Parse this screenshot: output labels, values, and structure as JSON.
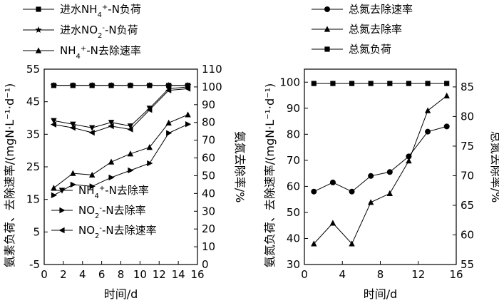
{
  "chart_data": [
    {
      "type": "line",
      "x": [
        1,
        3,
        5,
        7,
        9,
        11,
        13,
        15
      ],
      "xlabel": "时间/d",
      "xlim": [
        0,
        16
      ],
      "xticks": [
        0,
        2,
        4,
        6,
        8,
        10,
        12,
        14,
        16
      ],
      "ylabel": "氨素负荷、去除速率/(mgN·L⁻¹·d⁻¹)",
      "ylim": [
        -5,
        55
      ],
      "yticks": [
        -5,
        5,
        15,
        25,
        35,
        45,
        55
      ],
      "y2label": "氨氮去除率/%",
      "y2lim": [
        0,
        110
      ],
      "y2ticks": [
        0,
        10,
        20,
        30,
        40,
        50,
        60,
        70,
        80,
        90,
        100,
        110
      ],
      "grid": false,
      "legend_top": [
        {
          "parts": [
            {
              "t": "进水NH"
            },
            {
              "t": "4",
              "s": "sub"
            },
            {
              "t": "+",
              "s": "sup"
            },
            {
              "t": "-N负荷"
            }
          ],
          "marker": "square"
        },
        {
          "parts": [
            {
              "t": "进水NO"
            },
            {
              "t": "2",
              "s": "sub"
            },
            {
              "t": "-",
              "s": "sup"
            },
            {
              "t": "-N负荷"
            }
          ],
          "marker": "star"
        },
        {
          "parts": [
            {
              "t": "NH"
            },
            {
              "t": "4",
              "s": "sub"
            },
            {
              "t": "+",
              "s": "sup"
            },
            {
              "t": "-N去除速率"
            }
          ],
          "marker": "triangle-up"
        }
      ],
      "legend_inside": [
        {
          "parts": [
            {
              "t": "NH"
            },
            {
              "t": "4",
              "s": "sub"
            },
            {
              "t": "+",
              "s": "sup"
            },
            {
              "t": "-N去除率"
            }
          ],
          "marker": "triangle-down"
        },
        {
          "parts": [
            {
              "t": "NO"
            },
            {
              "t": "2",
              "s": "sub"
            },
            {
              "t": "-",
              "s": "sup"
            },
            {
              "t": "-N去除率"
            }
          ],
          "marker": "triangle-right"
        },
        {
          "parts": [
            {
              "t": "NO"
            },
            {
              "t": "2",
              "s": "sub"
            },
            {
              "t": "-",
              "s": "sup"
            },
            {
              "t": "-N去除速率"
            }
          ],
          "marker": "triangle-left"
        }
      ],
      "series": [
        {
          "marker": "square",
          "axis": "left",
          "values": [
            50,
            50,
            50,
            50,
            50,
            50,
            50,
            50
          ]
        },
        {
          "marker": "star",
          "axis": "left",
          "values": [
            50,
            50,
            50,
            50,
            50,
            50,
            50,
            50
          ]
        },
        {
          "marker": "triangle-down",
          "axis": "right",
          "values": [
            81,
            79,
            77,
            80,
            78,
            88,
            99,
            100
          ]
        },
        {
          "marker": "triangle-left",
          "axis": "left",
          "values": [
            38,
            37,
            35.5,
            37.5,
            36.5,
            42.5,
            48.5,
            49
          ]
        },
        {
          "marker": "triangle-right",
          "axis": "right",
          "values": [
            39,
            45,
            44,
            49,
            53,
            57,
            74,
            79
          ]
        },
        {
          "marker": "triangle-up",
          "axis": "left",
          "values": [
            18.5,
            23,
            22.5,
            26.5,
            29,
            31,
            38.5,
            41
          ]
        }
      ]
    },
    {
      "type": "line",
      "x": [
        1,
        3,
        5,
        7,
        9,
        11,
        13,
        15
      ],
      "xlabel": "时间/d",
      "xlim": [
        0,
        16
      ],
      "xticks": [
        0,
        4,
        8,
        12,
        16
      ],
      "ylabel": "氨氮负荷、去除速率/(mgN·L⁻¹·d⁻¹)",
      "ylim": [
        30,
        105
      ],
      "yticks": [
        30,
        40,
        50,
        60,
        70,
        80,
        90,
        100
      ],
      "y2label": "总氮去除率/%",
      "y2lim": [
        55,
        88
      ],
      "y2ticks": [
        55,
        60,
        65,
        70,
        75,
        80,
        85
      ],
      "grid": false,
      "legend_top": [
        {
          "parts": [
            {
              "t": "总氮去除速率"
            }
          ],
          "marker": "circle"
        },
        {
          "parts": [
            {
              "t": "总氮去除率"
            }
          ],
          "marker": "triangle-up"
        },
        {
          "parts": [
            {
              "t": "总氮负荷"
            }
          ],
          "marker": "square"
        }
      ],
      "series": [
        {
          "marker": "square",
          "axis": "left",
          "values": [
            99.5,
            99.5,
            99.5,
            99.5,
            99.5,
            99.5,
            99.5,
            99.5
          ]
        },
        {
          "marker": "circle",
          "axis": "left",
          "values": [
            58,
            61.5,
            58,
            64,
            65.5,
            71.5,
            81,
            83
          ]
        },
        {
          "marker": "triangle-up",
          "axis": "right",
          "values": [
            58.5,
            62,
            58.5,
            65.5,
            67,
            72.5,
            81,
            83.5
          ]
        }
      ]
    }
  ]
}
